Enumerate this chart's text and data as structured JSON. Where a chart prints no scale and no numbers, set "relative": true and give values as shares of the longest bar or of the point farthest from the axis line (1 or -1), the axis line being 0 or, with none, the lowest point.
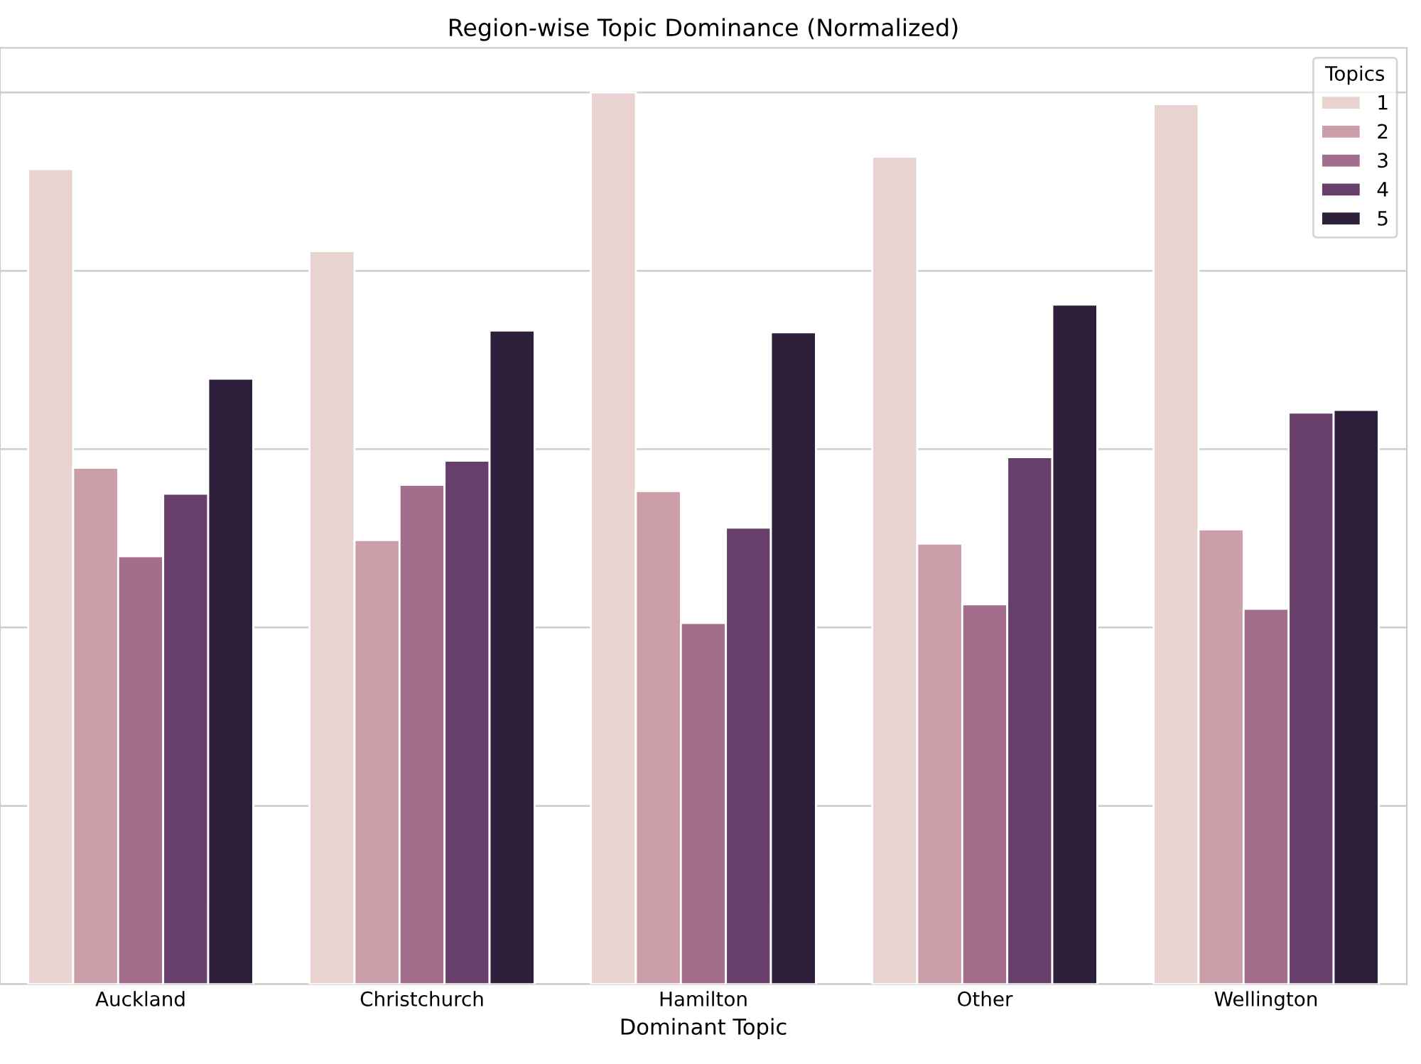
{
  "chart_data": {
    "type": "bar",
    "title": "Region-wise Topic Dominance (Normalized)",
    "xlabel": "Dominant Topic",
    "legend_title": "Topics",
    "relative": true,
    "categories": [
      "Auckland",
      "Christchurch",
      "Hamilton",
      "Other",
      "Wellington"
    ],
    "series": [
      {
        "name": "1",
        "color": "#e9d3d0",
        "values": [
          0.914,
          0.822,
          1,
          0.928,
          0.987
        ]
      },
      {
        "name": "2",
        "color": "#cc9ea9",
        "values": [
          0.579,
          0.498,
          0.553,
          0.494,
          0.51
        ]
      },
      {
        "name": "3",
        "color": "#a26e8c",
        "values": [
          0.48,
          0.56,
          0.405,
          0.426,
          0.421
        ]
      },
      {
        "name": "4",
        "color": "#673f6a",
        "values": [
          0.55,
          0.587,
          0.512,
          0.591,
          0.641
        ]
      },
      {
        "name": "5",
        "color": "#2e1f3b",
        "values": [
          0.679,
          0.733,
          0.731,
          0.762,
          0.644
        ]
      }
    ],
    "grid": "y",
    "legend": "top right"
  }
}
